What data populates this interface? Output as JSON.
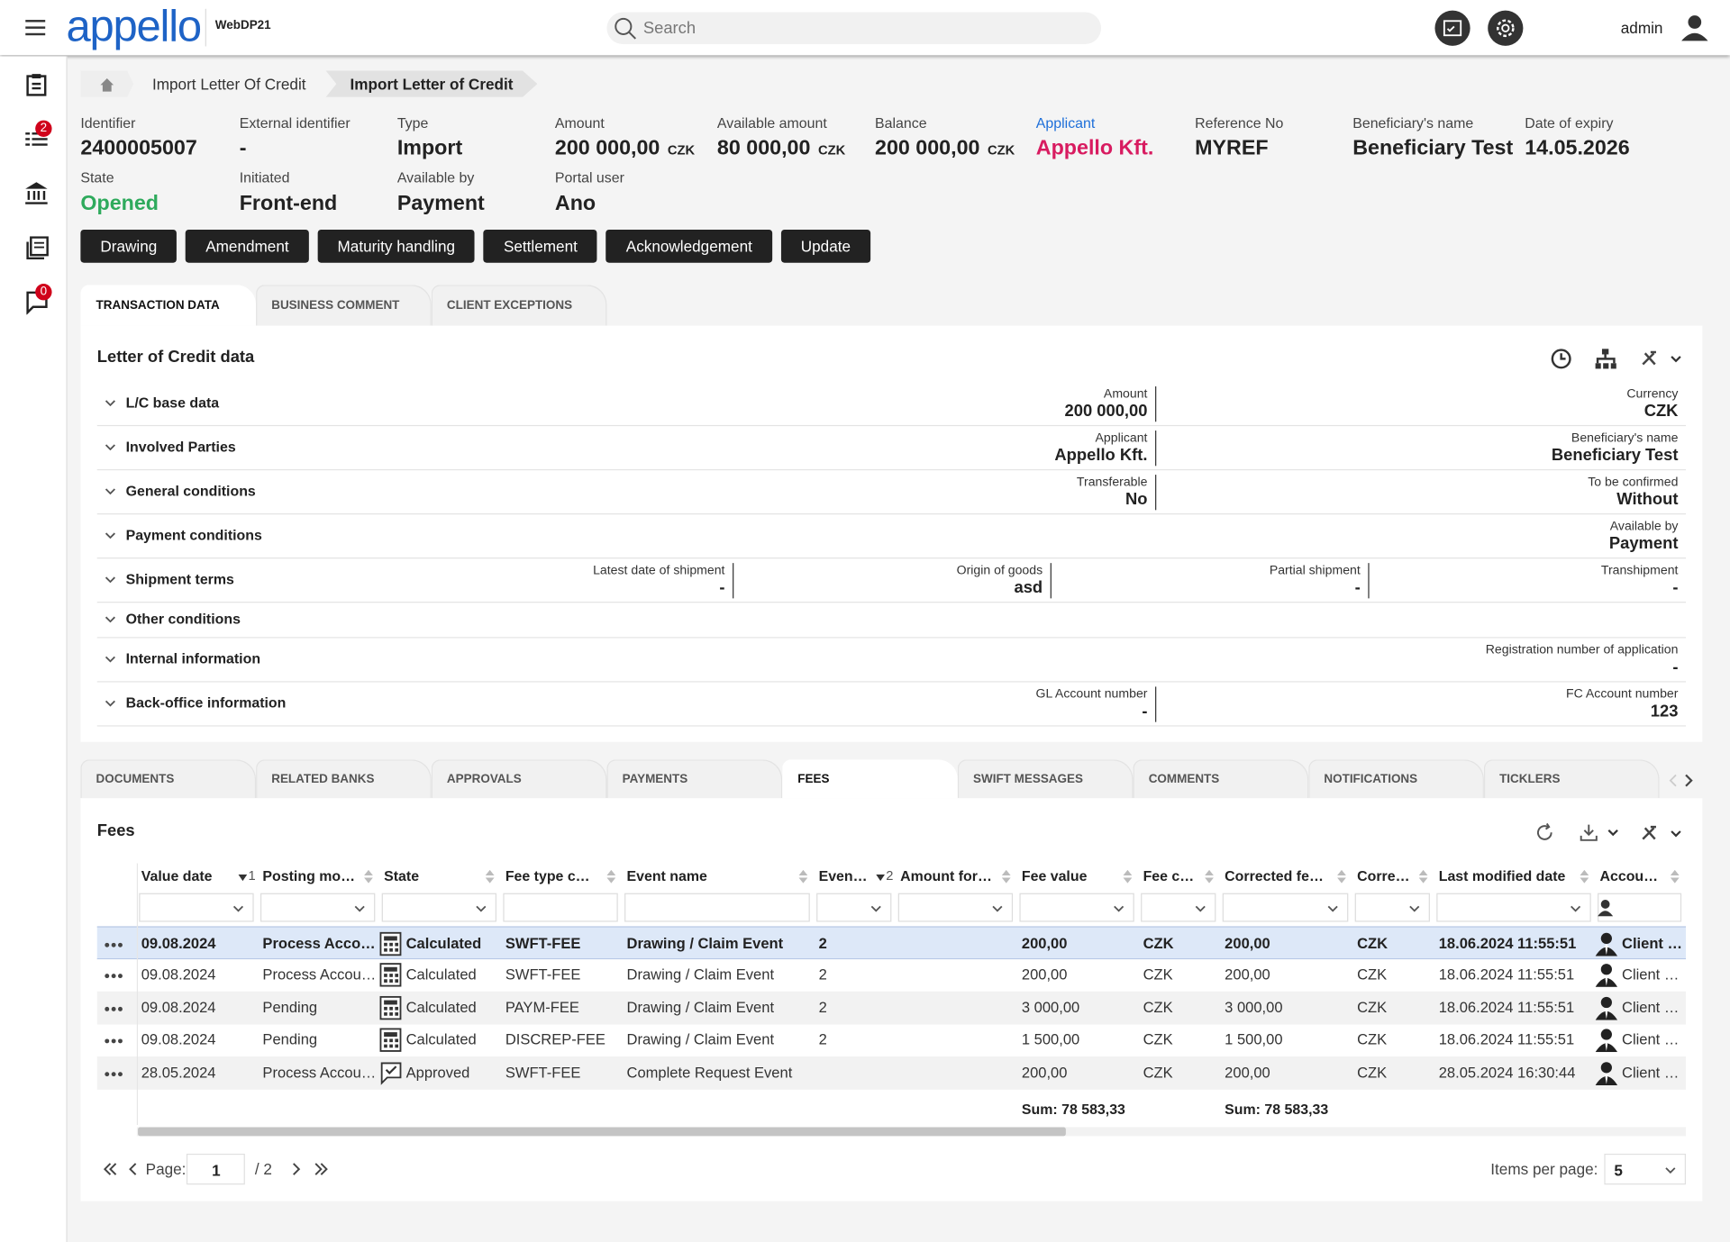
{
  "header": {
    "logo": "appello",
    "app_name": "WebDP21",
    "search_placeholder": "Search",
    "user": "admin"
  },
  "sidebar": {
    "badges": [
      "2",
      "0"
    ]
  },
  "breadcrumb": [
    "Import Letter Of Credit",
    "Import Letter of Credit"
  ],
  "summary": [
    {
      "label": "Identifier",
      "value": "2400005007"
    },
    {
      "label": "External identifier",
      "value": "-"
    },
    {
      "label": "Type",
      "value": "Import"
    },
    {
      "label": "Amount",
      "value": "200 000,00",
      "unit": "CZK"
    },
    {
      "label": "Available amount",
      "value": "80 000,00",
      "unit": "CZK"
    },
    {
      "label": "Balance",
      "value": "200 000,00",
      "unit": "CZK"
    },
    {
      "label": "Applicant",
      "value": "Appello Kft.",
      "label_color": "#1e6fd9",
      "value_color": "#d81b60"
    },
    {
      "label": "Reference No",
      "value": "MYREF"
    },
    {
      "label": "Beneficiary's name",
      "value": "Beneficiary Test"
    },
    {
      "label": "Date of expiry",
      "value": "14.05.2026"
    }
  ],
  "summary_row2": [
    {
      "label": "State",
      "value": "Opened",
      "value_color": "#2eaa5c"
    },
    {
      "label": "Initiated",
      "value": "Front-end"
    },
    {
      "label": "Available by",
      "value": "Payment"
    },
    {
      "label": "Portal user",
      "value": "Ano"
    }
  ],
  "actions": [
    "Drawing",
    "Amendment",
    "Maturity handling",
    "Settlement",
    "Acknowledgement",
    "Update"
  ],
  "tabs": [
    {
      "label": "TRANSACTION DATA",
      "active": true
    },
    {
      "label": "BUSINESS COMMENT",
      "active": false
    },
    {
      "label": "CLIENT EXCEPTIONS",
      "active": false
    }
  ],
  "panel": {
    "title": "Letter of Credit data",
    "sections": [
      {
        "title": "L/C base data",
        "fields": [
          {
            "label": "Amount",
            "value": "200 000,00"
          },
          {
            "label": "Currency",
            "value": "CZK"
          }
        ]
      },
      {
        "title": "Involved Parties",
        "fields": [
          {
            "label": "Applicant",
            "value": "Appello Kft."
          },
          {
            "label": "Beneficiary's name",
            "value": "Beneficiary Test"
          }
        ]
      },
      {
        "title": "General conditions",
        "fields": [
          {
            "label": "Transferable",
            "value": "No"
          },
          {
            "label": "To be confirmed",
            "value": "Without"
          }
        ]
      },
      {
        "title": "Payment conditions",
        "fields": [
          {
            "label": "Available by",
            "value": "Payment"
          }
        ]
      },
      {
        "title": "Shipment terms",
        "fields": [
          {
            "label": "Latest date of shipment",
            "value": "-"
          },
          {
            "label": "Origin of goods",
            "value": "asd"
          },
          {
            "label": "Partial shipment",
            "value": "-"
          },
          {
            "label": "Transhipment",
            "value": "-"
          }
        ]
      },
      {
        "title": "Other conditions",
        "fields": []
      },
      {
        "title": "Internal information",
        "fields": [
          {
            "label": "Registration number of application",
            "value": "-"
          }
        ]
      },
      {
        "title": "Back-office information",
        "fields": [
          {
            "label": "GL Account number",
            "value": "-"
          },
          {
            "label": "FC Account number",
            "value": "123"
          }
        ]
      }
    ]
  },
  "bottom_tabs": [
    {
      "label": "DOCUMENTS",
      "active": false
    },
    {
      "label": "RELATED BANKS",
      "active": false
    },
    {
      "label": "APPROVALS",
      "active": false
    },
    {
      "label": "PAYMENTS",
      "active": false
    },
    {
      "label": "FEES",
      "active": true
    },
    {
      "label": "SWIFT MESSAGES",
      "active": false
    },
    {
      "label": "COMMENTS",
      "active": false
    },
    {
      "label": "NOTIFICATIONS",
      "active": false
    },
    {
      "label": "TICKLERS",
      "active": false
    }
  ],
  "fees": {
    "title": "Fees",
    "columns": [
      {
        "label": "Value date",
        "sort": "1",
        "filter": "select"
      },
      {
        "label": "Posting mode",
        "filter": "select"
      },
      {
        "label": "State",
        "filter": "select"
      },
      {
        "label": "Fee type code",
        "filter": "text"
      },
      {
        "label": "Event name",
        "filter": "text"
      },
      {
        "label": "Event nu…",
        "sort": "2",
        "filter": "select"
      },
      {
        "label": "Amount for ac...",
        "filter": "select"
      },
      {
        "label": "Fee value",
        "filter": "select"
      },
      {
        "label": "Fee curr...",
        "filter": "select"
      },
      {
        "label": "Corrected fee v...",
        "filter": "select"
      },
      {
        "label": "Correcte...",
        "filter": "select"
      },
      {
        "label": "Last modified date",
        "filter": "select"
      },
      {
        "label": "Account type",
        "filter": "text"
      }
    ],
    "rows": [
      {
        "selected": true,
        "icon": "calculator",
        "cells": [
          "09.08.2024",
          "Process Accou...",
          "Calculated",
          "SWFT-FEE",
          "Drawing / Claim Event",
          "2",
          null,
          "200,00",
          "CZK",
          "200,00",
          "CZK",
          "18.06.2024 11:55:51",
          "Client ac"
        ]
      },
      {
        "selected": false,
        "icon": "calculator",
        "cells": [
          "09.08.2024",
          "Process Accoun...",
          "Calculated",
          "SWFT-FEE",
          "Drawing / Claim Event",
          "2",
          null,
          "200,00",
          "CZK",
          "200,00",
          "CZK",
          "18.06.2024 11:55:51",
          "Client acc"
        ]
      },
      {
        "selected": false,
        "icon": "calculator",
        "cells": [
          "09.08.2024",
          "Pending",
          "Calculated",
          "PAYM-FEE",
          "Drawing / Claim Event",
          "2",
          null,
          "3 000,00",
          "CZK",
          "3 000,00",
          "CZK",
          "18.06.2024 11:55:51",
          "Client acc"
        ]
      },
      {
        "selected": false,
        "icon": "calculator",
        "cells": [
          "09.08.2024",
          "Pending",
          "Calculated",
          "DISCREP-FEE",
          "Drawing / Claim Event",
          "2",
          null,
          "1 500,00",
          "CZK",
          "1 500,00",
          "CZK",
          "18.06.2024 11:55:51",
          "Client acc"
        ]
      },
      {
        "selected": false,
        "icon": "approved",
        "cells": [
          "28.05.2024",
          "Process Accoun...",
          "Approved",
          "SWFT-FEE",
          "Complete Request Event",
          null,
          null,
          "200,00",
          "CZK",
          "200,00",
          "CZK",
          "28.05.2024 16:30:44",
          "Client acc"
        ]
      }
    ],
    "sums": {
      "fee_value": "Sum: 78 583,33",
      "corrected_fee_value": "Sum: 78 583,33"
    },
    "pager": {
      "page_label": "Page:",
      "page": "1",
      "total": "/ 2",
      "items_label": "Items per page:",
      "items": "5"
    }
  }
}
